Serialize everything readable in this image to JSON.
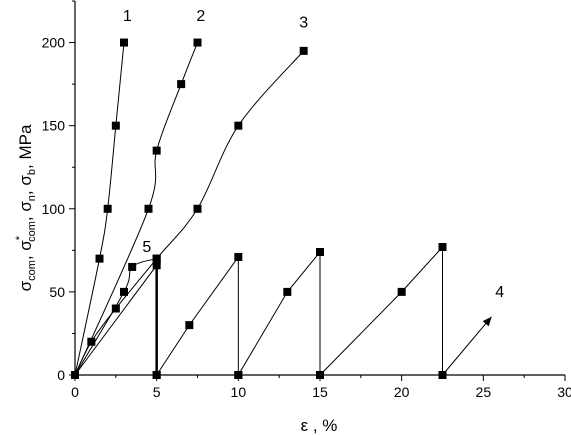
{
  "chart_data": {
    "type": "scatter",
    "xlabel": "ε , %",
    "ylabel": "σcom, σ*com, σn, σb, MPa",
    "xlim": [
      0,
      30
    ],
    "ylim": [
      0,
      225
    ],
    "x_ticks": [
      "0",
      "5",
      "10",
      "15",
      "20",
      "25",
      "30"
    ],
    "y_ticks": [
      "0",
      "50",
      "100",
      "150",
      "200"
    ],
    "grid": false,
    "series": [
      {
        "name": "1",
        "style": "squares-line",
        "x": [
          0,
          1.5,
          2,
          2.5,
          3
        ],
        "y": [
          0,
          70,
          100,
          150,
          200
        ]
      },
      {
        "name": "2",
        "style": "squares-line",
        "x": [
          0,
          4.5,
          5,
          6.5,
          7.5
        ],
        "y": [
          0,
          100,
          135,
          175,
          200
        ]
      },
      {
        "name": "3",
        "style": "squares-line",
        "x": [
          0,
          1,
          2.5,
          5,
          7.5,
          10,
          14
        ],
        "y": [
          0,
          20,
          40,
          70,
          100,
          150,
          195
        ]
      },
      {
        "name": "4",
        "style": "arrow-line",
        "x": [
          22.5,
          25.5
        ],
        "y": [
          0,
          35
        ]
      },
      {
        "name": "5",
        "style": "squares-line",
        "x": [
          0,
          3,
          3.5,
          5
        ],
        "y": [
          0,
          50,
          65,
          70
        ]
      }
    ],
    "cycles": [
      {
        "x": [
          0,
          5,
          5
        ],
        "y": [
          0,
          66,
          0
        ]
      },
      {
        "x": [
          5,
          7,
          10,
          10
        ],
        "y": [
          0,
          30,
          71,
          0
        ]
      },
      {
        "x": [
          10,
          13,
          15,
          15
        ],
        "y": [
          0,
          50,
          74,
          0
        ]
      },
      {
        "x": [
          15,
          20,
          22.5,
          22.5
        ],
        "y": [
          0,
          50,
          77,
          0
        ]
      }
    ],
    "label_positions": [
      {
        "text": "1",
        "x": 3.2,
        "y": 213
      },
      {
        "text": "2",
        "x": 7.7,
        "y": 213
      },
      {
        "text": "3",
        "x": 14,
        "y": 209
      },
      {
        "text": "4",
        "x": 26,
        "y": 47
      },
      {
        "text": "5",
        "x": 4.4,
        "y": 74
      }
    ]
  }
}
